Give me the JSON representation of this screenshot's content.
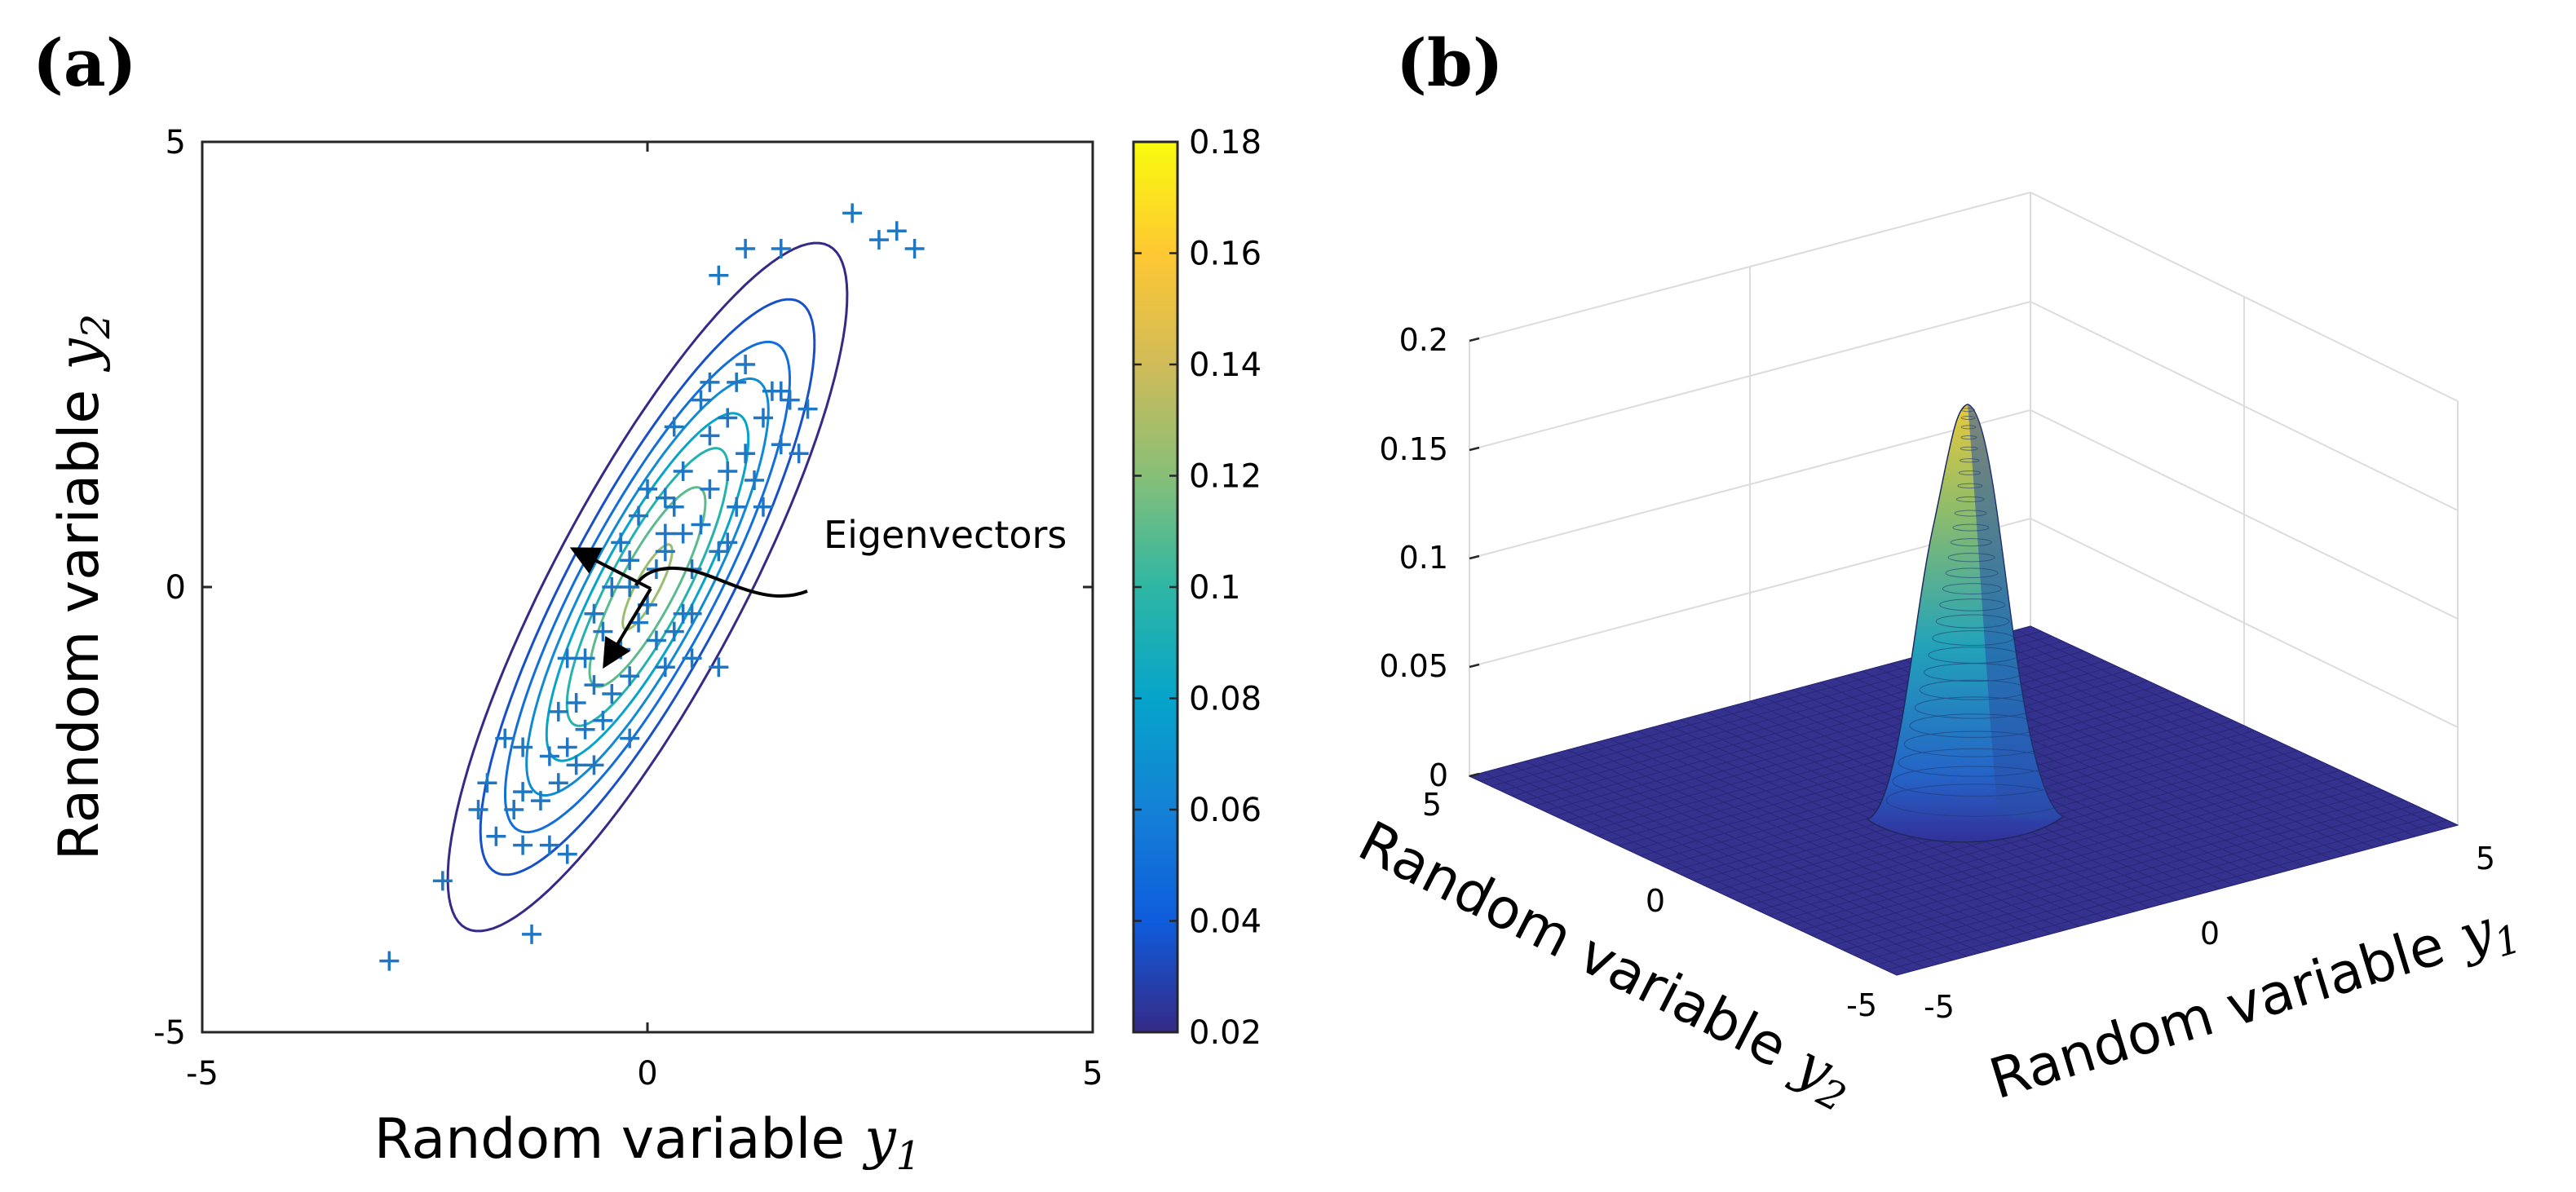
{
  "chart_data": [
    {
      "panel": "(a)",
      "type": "scatter",
      "overlay": "contour",
      "xlabel": "Random variable",
      "xlabel_var": "y",
      "xlabel_sub": "1",
      "ylabel": "Random variable",
      "ylabel_var": "y",
      "ylabel_sub": "2",
      "xlim": [
        -5,
        5
      ],
      "ylim": [
        -5,
        5
      ],
      "xticks": [
        "-5",
        "0",
        "5"
      ],
      "yticks": [
        "-5",
        "0",
        "5"
      ],
      "annotation": "Eigenvectors",
      "series": [
        {
          "name": "samples",
          "marker": "+",
          "color": "#1f77c4",
          "points": [
            [
              -2.9,
              -4.2
            ],
            [
              -2.3,
              -3.3
            ],
            [
              -1.9,
              -2.5
            ],
            [
              -1.8,
              -2.2
            ],
            [
              -1.7,
              -2.8
            ],
            [
              -1.5,
              -2.5
            ],
            [
              -1.4,
              -2.9
            ],
            [
              -1.3,
              -3.9
            ],
            [
              -1.4,
              -2.3
            ],
            [
              -1.2,
              -2.4
            ],
            [
              -1.1,
              -1.9
            ],
            [
              -1.0,
              -2.2
            ],
            [
              -0.9,
              -1.8
            ],
            [
              -0.8,
              -2.0
            ],
            [
              -1.1,
              -2.9
            ],
            [
              -0.9,
              -3.0
            ],
            [
              -0.8,
              -1.3
            ],
            [
              -0.7,
              -1.6
            ],
            [
              -0.6,
              -2.0
            ],
            [
              -0.5,
              -1.5
            ],
            [
              -0.9,
              -0.8
            ],
            [
              -0.7,
              -0.8
            ],
            [
              -0.5,
              -0.5
            ],
            [
              -0.4,
              -1.2
            ],
            [
              -0.3,
              -0.7
            ],
            [
              -0.2,
              -1.0
            ],
            [
              -0.1,
              -0.4
            ],
            [
              0.0,
              -0.2
            ],
            [
              0.1,
              -0.6
            ],
            [
              0.2,
              -0.9
            ],
            [
              0.3,
              -0.5
            ],
            [
              0.4,
              -0.3
            ],
            [
              0.5,
              -0.8
            ],
            [
              -1.4,
              -1.8
            ],
            [
              -0.6,
              -0.3
            ],
            [
              -0.4,
              0.0
            ],
            [
              -0.2,
              0.3
            ],
            [
              -0.1,
              0.8
            ],
            [
              0.0,
              1.1
            ],
            [
              0.2,
              0.4
            ],
            [
              0.3,
              0.9
            ],
            [
              0.4,
              0.6
            ],
            [
              0.5,
              0.2
            ],
            [
              0.6,
              0.7
            ],
            [
              0.7,
              1.1
            ],
            [
              0.8,
              0.4
            ],
            [
              0.9,
              1.3
            ],
            [
              1.0,
              0.9
            ],
            [
              1.1,
              1.5
            ],
            [
              1.2,
              1.2
            ],
            [
              1.3,
              1.9
            ],
            [
              1.4,
              2.2
            ],
            [
              1.5,
              1.6
            ],
            [
              1.6,
              2.1
            ],
            [
              0.7,
              1.7
            ],
            [
              0.6,
              2.1
            ],
            [
              0.9,
              1.9
            ],
            [
              1.0,
              2.3
            ],
            [
              0.4,
              1.3
            ],
            [
              0.3,
              1.8
            ],
            [
              0.7,
              2.3
            ],
            [
              1.1,
              2.5
            ],
            [
              1.5,
              2.2
            ],
            [
              1.7,
              1.5
            ],
            [
              0.8,
              3.5
            ],
            [
              1.1,
              3.8
            ],
            [
              1.5,
              3.8
            ],
            [
              2.3,
              4.2
            ],
            [
              2.6,
              3.9
            ],
            [
              2.8,
              4.0
            ],
            [
              3.0,
              3.8
            ],
            [
              1.8,
              2.0
            ],
            [
              0.2,
              1.0
            ],
            [
              -0.3,
              0.5
            ],
            [
              0.1,
              0.2
            ],
            [
              0.5,
              -0.3
            ],
            [
              -0.2,
              -1.7
            ],
            [
              -0.6,
              -1.1
            ],
            [
              0.8,
              -0.9
            ],
            [
              0.2,
              0.6
            ],
            [
              1.3,
              0.9
            ],
            [
              0.9,
              0.5
            ],
            [
              -1.6,
              -1.7
            ],
            [
              -1.0,
              -1.4
            ],
            [
              -0.2,
              0.0
            ]
          ]
        }
      ],
      "contour": {
        "mean": [
          0,
          0
        ],
        "major_axis_angle_deg": 62,
        "major_sigma": 2.25,
        "minor_sigma": 0.55,
        "levels": [
          0.02,
          0.035,
          0.05,
          0.065,
          0.08,
          0.095,
          0.11,
          0.125,
          0.14,
          0.155
        ]
      },
      "colorbar": {
        "min": 0.02,
        "max": 0.18,
        "ticks": [
          "0.02",
          "0.04",
          "0.06",
          "0.08",
          "0.1",
          "0.12",
          "0.14",
          "0.16",
          "0.18"
        ],
        "colormap": [
          "#352a87",
          "#0f5cdd",
          "#1481d6",
          "#06a4ca",
          "#2eb7a4",
          "#87bf77",
          "#d1bb59",
          "#fec832",
          "#f9fb0e"
        ]
      }
    },
    {
      "panel": "(b)",
      "type": "surface",
      "xlabel": "Random variable",
      "xlabel_var": "y",
      "xlabel_sub": "1",
      "ylabel": "Random variable",
      "ylabel_var": "y",
      "ylabel_sub": "2",
      "xlim": [
        -5,
        5
      ],
      "ylim": [
        -5,
        5
      ],
      "zlim": [
        0,
        0.2
      ],
      "xticks": [
        "-5",
        "0",
        "5"
      ],
      "yticks": [
        "5",
        "0",
        "-5"
      ],
      "zticks": [
        "0",
        "0.05",
        "0.1",
        "0.15",
        "0.2"
      ],
      "peak_value": 0.17,
      "grid": true
    }
  ]
}
